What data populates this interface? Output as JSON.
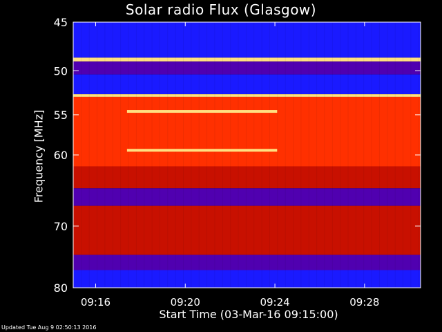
{
  "chart_data": {
    "type": "heatmap",
    "title": "Solar radio Flux (Glasgow)",
    "xlabel": "Start Time (03-Mar-16 09:15:00)",
    "ylabel": "Frequency [MHz]",
    "x_ticks": [
      "09:16",
      "09:20",
      "09:24",
      "09:28"
    ],
    "x_tick_minutes": [
      1,
      5,
      9,
      13
    ],
    "x_range_minutes": [
      0,
      15.5
    ],
    "y_ticks": [
      45,
      50,
      55,
      60,
      70,
      80
    ],
    "y_range_mhz": [
      45,
      80
    ],
    "y_scale": "log",
    "colors": {
      "cold": "#1a1aff",
      "cool": "#5000b0",
      "warm": "#c81000",
      "hot": "#ff3000",
      "peak": "#ffe080"
    },
    "bands": [
      {
        "from": 45,
        "to": 48.6,
        "level": "cold"
      },
      {
        "from": 48.6,
        "to": 49.0,
        "level": "peak"
      },
      {
        "from": 49.0,
        "to": 50.4,
        "level": "cool"
      },
      {
        "from": 50.4,
        "to": 52.6,
        "level": "cold"
      },
      {
        "from": 52.6,
        "to": 52.9,
        "level": "peak"
      },
      {
        "from": 52.9,
        "to": 61.5,
        "level": "hot"
      },
      {
        "from": 61.5,
        "to": 64.5,
        "level": "warm"
      },
      {
        "from": 64.5,
        "to": 67.0,
        "level": "cool"
      },
      {
        "from": 67.0,
        "to": 74.5,
        "level": "warm"
      },
      {
        "from": 74.5,
        "to": 77.0,
        "level": "cool"
      },
      {
        "from": 77.0,
        "to": 80,
        "level": "cold"
      }
    ],
    "features": [
      {
        "from_min": 2.4,
        "to_min": 9.1,
        "freq_mhz": 54.6,
        "level": "peak"
      },
      {
        "from_min": 2.4,
        "to_min": 9.1,
        "freq_mhz": 59.4,
        "level": "peak"
      }
    ]
  },
  "footer": "Updated Tue Aug  9 02:50:13 2016"
}
